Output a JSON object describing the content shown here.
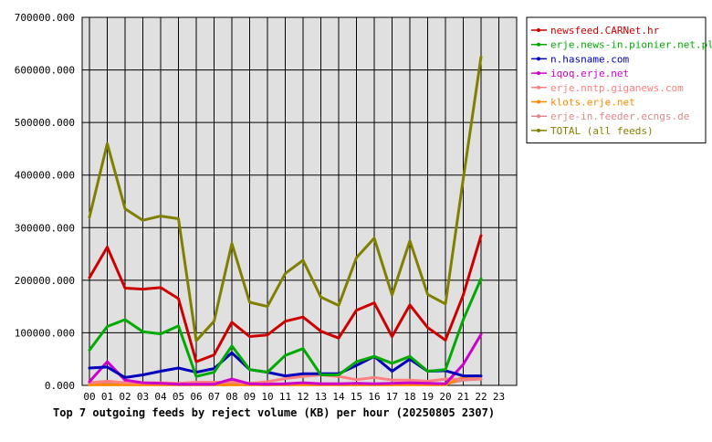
{
  "chart_data": {
    "type": "line",
    "title": "Top 7 outgoing feeds by reject volume (KB) per hour (20250805 2307)",
    "xlabel": "",
    "ylabel": "",
    "ylim": [
      0,
      700000
    ],
    "y_ticks": [
      "0.000",
      "100000.000",
      "200000.000",
      "300000.000",
      "400000.000",
      "500000.000",
      "600000.000",
      "700000.000"
    ],
    "x_ticks": [
      "00",
      "01",
      "02",
      "03",
      "04",
      "05",
      "06",
      "07",
      "08",
      "09",
      "10",
      "11",
      "12",
      "13",
      "14",
      "15",
      "16",
      "17",
      "18",
      "19",
      "20",
      "21",
      "22",
      "23"
    ],
    "grid": true,
    "legend_position": "right",
    "plot_background": "#e0e0e0",
    "series": [
      {
        "name": "newsfeed.CARNet.hr",
        "color": "#cc0000",
        "values": [
          205000,
          263000,
          185000,
          183000,
          186000,
          165000,
          45000,
          58000,
          120000,
          93000,
          96000,
          122000,
          130000,
          103000,
          90000,
          143000,
          157000,
          93000,
          153000,
          110000,
          86000,
          172000,
          285000
        ]
      },
      {
        "name": "erje.news-in.pionier.net.pl",
        "color": "#00aa00",
        "values": [
          67000,
          112000,
          125000,
          102000,
          98000,
          113000,
          17000,
          25000,
          75000,
          30000,
          25000,
          57000,
          70000,
          20000,
          20000,
          45000,
          55000,
          42000,
          55000,
          27000,
          30000,
          125000,
          203000
        ]
      },
      {
        "name": "n.hasname.com",
        "color": "#0000bb",
        "values": [
          33000,
          35000,
          15000,
          20000,
          27000,
          33000,
          25000,
          32000,
          62000,
          30000,
          25000,
          18000,
          22000,
          22000,
          22000,
          38000,
          55000,
          27000,
          50000,
          27000,
          28000,
          18000,
          18000
        ]
      },
      {
        "name": "iqoq.erje.net",
        "color": "#cc00cc",
        "values": [
          7000,
          45000,
          10000,
          5000,
          4000,
          2000,
          2000,
          2000,
          12000,
          3000,
          2000,
          3000,
          5000,
          3000,
          3000,
          4000,
          3000,
          4000,
          5000,
          4000,
          3000,
          40000,
          97000
        ]
      },
      {
        "name": "erje.nntp.giganews.com",
        "color": "#ff8080",
        "values": [
          5000,
          8000,
          5000,
          5000,
          5000,
          4000,
          6000,
          6000,
          6000,
          4000,
          7000,
          13000,
          17000,
          20000,
          17000,
          11000,
          15000,
          10000,
          10000,
          8000,
          12000,
          12000,
          12000
        ]
      },
      {
        "name": "klots.erje.net",
        "color": "#ff8800",
        "values": [
          1000,
          1000,
          1000,
          1000,
          1000,
          1000,
          1000,
          1000,
          1000,
          1000,
          1000,
          1000,
          1000,
          1000,
          1000,
          1000,
          1000,
          1000,
          1000,
          1000,
          1000,
          16000,
          18000
        ]
      },
      {
        "name": "erje-in.feeder.ecngs.de",
        "color": "#dd8888",
        "values": [
          4000,
          4000,
          5000,
          4000,
          4000,
          3000,
          3000,
          3000,
          3000,
          3000,
          3000,
          3000,
          4000,
          3000,
          3000,
          4000,
          3000,
          3000,
          3000,
          3000,
          3000,
          10000,
          12000
        ]
      },
      {
        "name": "TOTAL (all feeds)",
        "color": "#808000",
        "values": [
          320000,
          460000,
          336000,
          314000,
          322000,
          317000,
          85000,
          122000,
          270000,
          158000,
          150000,
          213000,
          238000,
          168000,
          152000,
          243000,
          280000,
          172000,
          275000,
          173000,
          155000,
          393000,
          625000
        ]
      }
    ]
  }
}
